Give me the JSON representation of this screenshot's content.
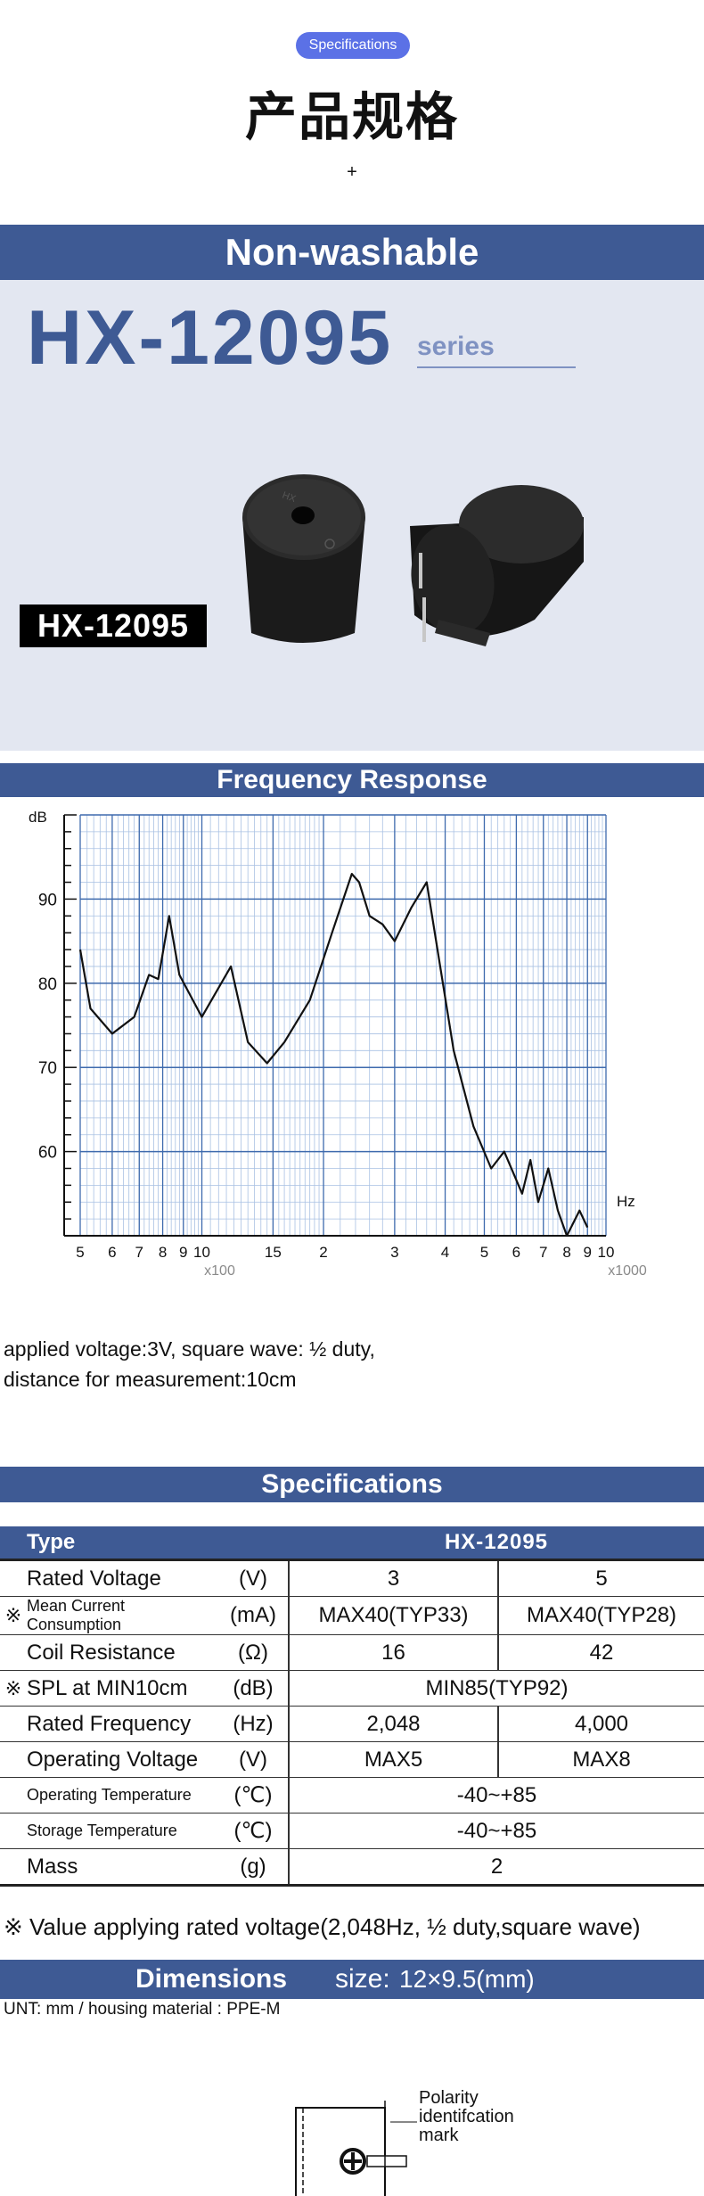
{
  "header": {
    "badge": "Specifications",
    "title": "产品规格",
    "plus": "+"
  },
  "product": {
    "band_title": "Non-washable",
    "model": "HX-12095",
    "series_label": "series",
    "tag": "HX-12095"
  },
  "frequency": {
    "band_title": "Frequency Response",
    "note_line1": "applied voltage:3V, square wave: ½ duty,",
    "note_line2": "distance for measurement:10cm"
  },
  "chart_data": {
    "type": "line",
    "ylabel": "dB",
    "xlabel": "Hz",
    "x_scale": "log",
    "xlim": [
      500,
      10000
    ],
    "ylim": [
      50,
      100
    ],
    "y_ticks": [
      "90",
      "80",
      "70",
      "60"
    ],
    "x_ticks": [
      "5",
      "6",
      "7",
      "8",
      "9",
      "10",
      "15",
      "2",
      "3",
      "4",
      "5",
      "6",
      "7",
      "8",
      "9",
      "10"
    ],
    "x_multiplier_labels": [
      "x100",
      "x1000"
    ],
    "grid": true,
    "series": [
      {
        "x": [
          500,
          530,
          600,
          680,
          740,
          780,
          810,
          830,
          880,
          1000,
          1180,
          1300,
          1450,
          1600,
          1850,
          2100,
          2350,
          2450,
          2600,
          2800,
          3000,
          3300,
          3600,
          3800,
          4200,
          4700,
          5200,
          5600,
          6200,
          6500,
          6800,
          7200,
          7600,
          8000,
          8600,
          9000
        ],
        "y": [
          84,
          77,
          74,
          76,
          81,
          80.5,
          85,
          88,
          81,
          76,
          82,
          73,
          70.5,
          73,
          78,
          86,
          93,
          92,
          88,
          87,
          85,
          89,
          92,
          85,
          72,
          63,
          58,
          60,
          55,
          59,
          54,
          58,
          53,
          50,
          53,
          51
        ]
      }
    ]
  },
  "specs": {
    "band_title": "Specifications",
    "header": {
      "type": "Type",
      "model": "HX-12095"
    },
    "rows": [
      {
        "mark": "",
        "name": "Rated Voltage",
        "unit": "(V)",
        "v1": "3",
        "v2": "5",
        "small": false
      },
      {
        "mark": "※",
        "name": "Mean Current Consumption",
        "unit": "(mA)",
        "v1": "MAX40(TYP33)",
        "v2": "MAX40(TYP28)",
        "small": true
      },
      {
        "mark": "",
        "name": "Coil Resistance",
        "unit": "(Ω)",
        "v1": "16",
        "v2": "42",
        "small": false
      },
      {
        "mark": "※",
        "name": "SPL at MIN10cm",
        "unit": "(dB)",
        "merged": "MIN85(TYP92)",
        "small": false
      },
      {
        "mark": "",
        "name": "Rated Frequency",
        "unit": "(Hz)",
        "v1": "2,048",
        "v2": "4,000",
        "small": false
      },
      {
        "mark": "",
        "name": "Operating Voltage",
        "unit": "(V)",
        "v1": "MAX5",
        "v2": "MAX8",
        "small": false
      },
      {
        "mark": "",
        "name": "Operating Temperature",
        "unit": "(℃)",
        "merged": "-40~+85",
        "small": true
      },
      {
        "mark": "",
        "name": "Storage Temperature",
        "unit": "(℃)",
        "merged": "-40~+85",
        "small": true
      },
      {
        "mark": "",
        "name": "Mass",
        "unit": "(g)",
        "merged": "2",
        "small": false
      }
    ],
    "footnote": "※ Value applying rated voltage(2,048Hz, ½ duty,square wave)"
  },
  "dimensions": {
    "band_title": "Dimensions",
    "size_label": "size:",
    "size_value": "12×9.5(mm)",
    "unit_line": "UNT: mm  /  housing material : PPE-M",
    "polarity_line1": "Polarity",
    "polarity_line2": "identifcation",
    "polarity_line3": "mark"
  },
  "colors": {
    "brand_blue": "#3e5a94",
    "badge_blue": "#5b71e6",
    "panel_bg": "#e3e7f1",
    "curve": "#111111",
    "grid_minor": "#a9c1e3",
    "grid_major": "#3e6aad"
  }
}
